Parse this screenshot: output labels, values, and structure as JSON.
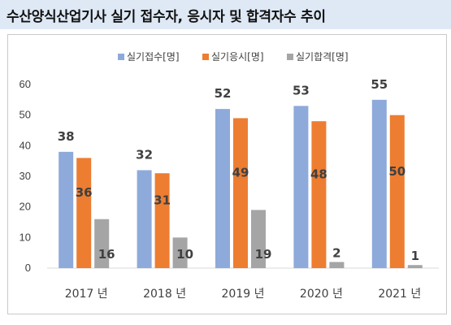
{
  "page": {
    "title": "수산양식산업기사 실기 접수자, 응시자 및 합격자수 추이"
  },
  "chart_data": {
    "type": "bar",
    "categories": [
      "2017 년",
      "2018 년",
      "2019 년",
      "2020 년",
      "2021 년"
    ],
    "series": [
      {
        "name": "실기접수[명]",
        "values": [
          38,
          32,
          52,
          53,
          55
        ],
        "color": "#8eaadb"
      },
      {
        "name": "실기응시[명]",
        "values": [
          36,
          31,
          49,
          48,
          50
        ],
        "color": "#ed7d31"
      },
      {
        "name": "실기합격[명]",
        "values": [
          16,
          10,
          19,
          2,
          1
        ],
        "color": "#a5a5a5"
      }
    ],
    "ylim": [
      0,
      60
    ],
    "yticks": [
      0,
      10,
      20,
      30,
      40,
      50,
      60
    ],
    "grid": false,
    "legend": "top-center",
    "data_labels": true
  }
}
